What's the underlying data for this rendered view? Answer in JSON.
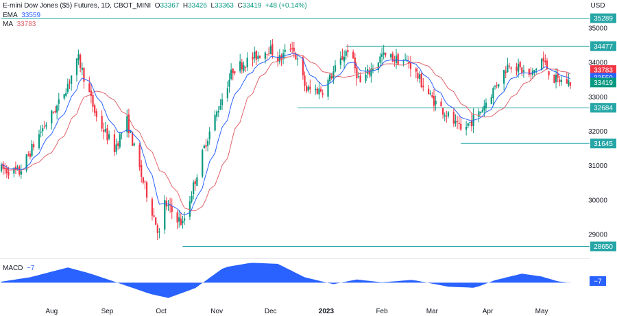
{
  "header": {
    "symbol": "E-mini Dow Jones ($5) Futures, 1D, CBOT_MINI",
    "open_label": "O",
    "open": "33367",
    "high_label": "H",
    "high": "33426",
    "low_label": "L",
    "low": "33363",
    "close_label": "C",
    "close": "33419",
    "change": "+48 (+0.14%)",
    "ema_label": "EMA",
    "ema_value": "33559",
    "ma_label": "MA",
    "ma_value": "33783",
    "currency": "USD"
  },
  "macd": {
    "label": "MACD",
    "value": "−7"
  },
  "colors": {
    "up": "#089981",
    "down": "#f23645",
    "ema": "#2962ff",
    "ma": "#e0626a",
    "level": "#26a6a6",
    "macd": "#2962ff",
    "close_tag": "#089981"
  },
  "chart_data": {
    "type": "candlestick",
    "y_unit": "USD",
    "ylim": [
      28300,
      35700
    ],
    "y_ticks": [
      29000,
      30000,
      31000,
      32000,
      33000,
      34000,
      35000
    ],
    "x_ticks": [
      "Aug",
      "Sep",
      "Oct",
      "Nov",
      "Dec",
      "2023",
      "Feb",
      "Mar",
      "Apr",
      "May"
    ],
    "x_tick_dates": [
      "2022-08-01",
      "2022-09-01",
      "2022-10-01",
      "2022-11-01",
      "2022-12-01",
      "2023-01-01",
      "2023-02-01",
      "2023-03-01",
      "2023-04-01",
      "2023-05-01"
    ],
    "date_range": [
      "2022-07-04",
      "2023-05-17"
    ],
    "price_path": [
      [
        "2022-07-04",
        30900
      ],
      [
        "2022-07-14",
        30800
      ],
      [
        "2022-07-26",
        32000
      ],
      [
        "2022-08-05",
        32800
      ],
      [
        "2022-08-16",
        34100
      ],
      [
        "2022-08-26",
        32400
      ],
      [
        "2022-09-05",
        31500
      ],
      [
        "2022-09-12",
        32300
      ],
      [
        "2022-09-20",
        30700
      ],
      [
        "2022-09-30",
        29000
      ],
      [
        "2022-10-03",
        29900
      ],
      [
        "2022-10-13",
        29300
      ],
      [
        "2022-10-26",
        31700
      ],
      [
        "2022-11-10",
        33800
      ],
      [
        "2022-11-30",
        34400
      ],
      [
        "2022-12-06",
        34100
      ],
      [
        "2022-12-13",
        34500
      ],
      [
        "2022-12-21",
        33200
      ],
      [
        "2022-12-30",
        33200
      ],
      [
        "2023-01-13",
        34400
      ],
      [
        "2023-01-20",
        33400
      ],
      [
        "2023-02-01",
        34200
      ],
      [
        "2023-02-16",
        34000
      ],
      [
        "2023-02-28",
        33000
      ],
      [
        "2023-03-09",
        32500
      ],
      [
        "2023-03-17",
        32000
      ],
      [
        "2023-03-27",
        32500
      ],
      [
        "2023-04-13",
        34000
      ],
      [
        "2023-04-25",
        33600
      ],
      [
        "2023-05-01",
        34100
      ],
      [
        "2023-05-08",
        33500
      ],
      [
        "2023-05-17",
        33419
      ]
    ],
    "levels": [
      {
        "value": 35289,
        "start": "2022-07-04"
      },
      {
        "value": 34477,
        "start": "2023-01-12"
      },
      {
        "value": 32684,
        "start": "2022-12-16"
      },
      {
        "value": 31645,
        "start": "2023-03-17"
      },
      {
        "value": 28650,
        "start": "2022-10-13"
      }
    ],
    "price_tags": [
      {
        "value": 35289,
        "color": "#26a6a6",
        "label": "35289"
      },
      {
        "value": 34477,
        "color": "#26a6a6",
        "label": "34477"
      },
      {
        "value": 33783,
        "color": "#f23645",
        "label": "33783"
      },
      {
        "value": 33559,
        "color": "#2962ff",
        "label": "33559"
      },
      {
        "value": 33419,
        "color": "#089981",
        "label": "33419"
      },
      {
        "value": 32684,
        "color": "#26a6a6",
        "label": "32684"
      },
      {
        "value": 31645,
        "color": "#26a6a6",
        "label": "31645"
      },
      {
        "value": 28650,
        "color": "#26a6a6",
        "label": "28650"
      }
    ],
    "macd_path": [
      [
        "2022-07-04",
        30
      ],
      [
        "2022-07-20",
        150
      ],
      [
        "2022-08-10",
        420
      ],
      [
        "2022-08-22",
        260
      ],
      [
        "2022-09-05",
        30
      ],
      [
        "2022-09-25",
        -310
      ],
      [
        "2022-10-05",
        -420
      ],
      [
        "2022-10-20",
        -150
      ],
      [
        "2022-11-05",
        420
      ],
      [
        "2022-11-20",
        550
      ],
      [
        "2022-12-05",
        520
      ],
      [
        "2022-12-20",
        150
      ],
      [
        "2023-01-05",
        -40
      ],
      [
        "2023-01-18",
        90
      ],
      [
        "2023-02-01",
        10
      ],
      [
        "2023-02-18",
        80
      ],
      [
        "2023-03-10",
        -110
      ],
      [
        "2023-03-25",
        -140
      ],
      [
        "2023-04-05",
        70
      ],
      [
        "2023-04-20",
        250
      ],
      [
        "2023-05-01",
        170
      ],
      [
        "2023-05-10",
        40
      ],
      [
        "2023-05-17",
        -7
      ]
    ],
    "macd_ylim": [
      -520,
      650
    ]
  }
}
